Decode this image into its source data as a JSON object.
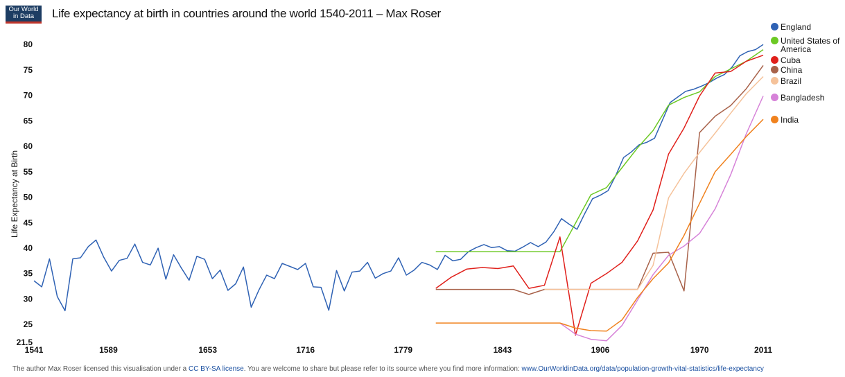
{
  "logo": [
    "Our World",
    "in Data"
  ],
  "chart_data": {
    "type": "line",
    "title": "Life expectancy at birth in countries around the world 1540-2011 – Max Roser",
    "y_label": "Life Expectancy at Birth",
    "xlim": [
      1541,
      2011
    ],
    "xticks": [
      1541,
      1589,
      1653,
      1716,
      1779,
      1843,
      1906,
      1970,
      2011
    ],
    "ylim": [
      21.5,
      80
    ],
    "yticks": [
      21.5,
      25,
      30,
      35,
      40,
      45,
      50,
      55,
      60,
      65,
      70,
      75,
      80
    ],
    "grid": false,
    "series": [
      {
        "name": "England",
        "color": "#2f62b4",
        "x": [
          1541,
          1546,
          1551,
          1556,
          1561,
          1566,
          1571,
          1576,
          1581,
          1586,
          1591,
          1596,
          1601,
          1606,
          1611,
          1616,
          1621,
          1626,
          1631,
          1636,
          1641,
          1646,
          1651,
          1656,
          1661,
          1666,
          1671,
          1676,
          1681,
          1686,
          1691,
          1696,
          1701,
          1706,
          1711,
          1716,
          1721,
          1726,
          1731,
          1736,
          1741,
          1746,
          1751,
          1756,
          1761,
          1766,
          1771,
          1776,
          1781,
          1786,
          1791,
          1796,
          1801,
          1806,
          1811,
          1816,
          1821,
          1826,
          1831,
          1836,
          1841,
          1846,
          1851,
          1856,
          1861,
          1866,
          1871,
          1876,
          1881,
          1886,
          1891,
          1896,
          1901,
          1906,
          1911,
          1916,
          1921,
          1926,
          1931,
          1936,
          1941,
          1946,
          1951,
          1956,
          1961,
          1966,
          1971,
          1976,
          1981,
          1986,
          1991,
          1996,
          2001,
          2006,
          2011
        ],
        "values": [
          33.7,
          32.5,
          38.0,
          30.6,
          27.8,
          38.0,
          38.2,
          40.4,
          41.7,
          38.3,
          35.6,
          37.7,
          38.1,
          40.9,
          37.3,
          36.8,
          40.1,
          34.0,
          38.8,
          36.2,
          33.8,
          38.5,
          37.9,
          34.1,
          35.8,
          31.8,
          33.1,
          36.4,
          28.5,
          31.9,
          34.8,
          34.1,
          37.1,
          36.5,
          35.9,
          37.1,
          32.5,
          32.4,
          27.9,
          35.7,
          31.7,
          35.4,
          35.6,
          37.3,
          34.2,
          35.1,
          35.6,
          38.2,
          34.8,
          35.8,
          37.3,
          36.8,
          35.9,
          38.7,
          37.6,
          37.9,
          39.4,
          40.2,
          40.8,
          40.2,
          40.4,
          39.6,
          39.5,
          40.3,
          41.2,
          40.4,
          41.3,
          43.3,
          45.9,
          44.8,
          43.8,
          46.9,
          49.8,
          50.5,
          51.4,
          54.4,
          57.9,
          59.0,
          60.4,
          60.9,
          61.7,
          65.2,
          68.7,
          69.8,
          70.9,
          71.3,
          71.9,
          72.6,
          73.5,
          74.2,
          75.7,
          77.9,
          78.7,
          79.1,
          80.1
        ]
      },
      {
        "name": "United States of America",
        "color": "#6cc924",
        "x": [
          1800,
          1880,
          1890,
          1900,
          1910,
          1920,
          1930,
          1940,
          1950,
          1960,
          1970,
          1980,
          1990,
          2000,
          2011
        ],
        "values": [
          39.4,
          39.4,
          45.0,
          50.6,
          52.0,
          55.9,
          59.8,
          63.2,
          68.2,
          69.7,
          70.8,
          73.8,
          75.3,
          76.8,
          79.1
        ]
      },
      {
        "name": "Cuba",
        "color": "#e0201b",
        "x": [
          1800,
          1810,
          1820,
          1830,
          1840,
          1850,
          1860,
          1870,
          1880,
          1890,
          1900,
          1910,
          1920,
          1930,
          1940,
          1950,
          1960,
          1970,
          1980,
          1990,
          2000,
          2011
        ],
        "values": [
          32.2,
          34.4,
          36.0,
          36.3,
          36.1,
          36.6,
          32.2,
          32.8,
          42.3,
          23.0,
          33.2,
          35.1,
          37.3,
          41.5,
          47.6,
          58.6,
          63.7,
          70.0,
          74.5,
          74.8,
          76.8,
          78.0
        ]
      },
      {
        "name": "China",
        "color": "#a8624a",
        "x": [
          1800,
          1850,
          1860,
          1870,
          1930,
          1940,
          1950,
          1960,
          1970,
          1980,
          1990,
          2000,
          2011
        ],
        "values": [
          32.0,
          32.0,
          31.0,
          32.0,
          32.0,
          39.1,
          39.3,
          31.7,
          62.8,
          66.0,
          68.1,
          71.4,
          76.0
        ]
      },
      {
        "name": "Brazil",
        "color": "#f5c29a",
        "x": [
          1870,
          1930,
          1940,
          1950,
          1960,
          1970,
          1980,
          1990,
          2000,
          2011
        ],
        "values": [
          32.0,
          32.0,
          36.7,
          50.0,
          54.8,
          58.9,
          62.7,
          66.6,
          70.4,
          73.8
        ]
      },
      {
        "name": "Bangladesh",
        "color": "#d682d8",
        "x": [
          1880,
          1890,
          1900,
          1910,
          1920,
          1930,
          1940,
          1950,
          1960,
          1970,
          1980,
          1990,
          2000,
          2011
        ],
        "values": [
          25.4,
          23.2,
          22.2,
          21.9,
          24.9,
          29.9,
          34.9,
          38.7,
          40.5,
          43.0,
          47.8,
          54.5,
          62.5,
          70.0
        ]
      },
      {
        "name": "India",
        "color": "#f0821e",
        "x": [
          1800,
          1880,
          1890,
          1900,
          1910,
          1920,
          1930,
          1940,
          1950,
          1960,
          1970,
          1980,
          1990,
          2000,
          2011
        ],
        "values": [
          25.4,
          25.4,
          24.4,
          23.9,
          23.8,
          26.0,
          30.4,
          34.1,
          37.2,
          42.6,
          48.9,
          55.1,
          58.5,
          62.0,
          65.4
        ]
      }
    ]
  },
  "footer": {
    "text1": "The author Max Roser licensed this visualisation under a",
    "link1": "CC BY-SA license",
    "text2": ". You are welcome to share but please refer to its source where you find more information:",
    "link2": "www.OurWorldinData.org/data/population-growth-vital-statistics/life-expectancy"
  }
}
